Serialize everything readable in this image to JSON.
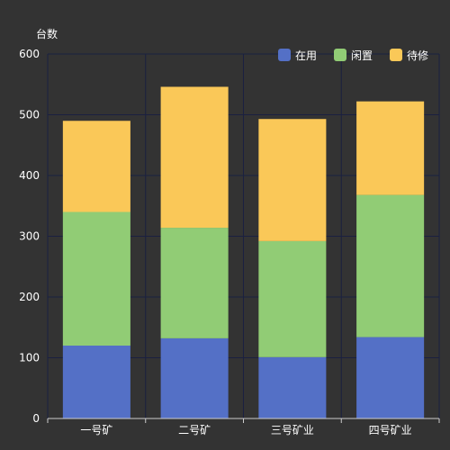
{
  "chart_data": {
    "type": "bar",
    "stacked": true,
    "title": "",
    "xlabel": "",
    "ylabel": "台数",
    "ylim": [
      0,
      600
    ],
    "yticks": [
      0,
      100,
      200,
      300,
      400,
      500,
      600
    ],
    "grid": true,
    "legend_position": "top-right",
    "categories": [
      "一号矿",
      "二号矿",
      "三号矿业",
      "四号矿业"
    ],
    "series": [
      {
        "name": "在用",
        "color": "#5470c6",
        "values": [
          120,
          132,
          101,
          134
        ]
      },
      {
        "name": "闲置",
        "color": "#91cc75",
        "values": [
          220,
          182,
          191,
          234
        ]
      },
      {
        "name": "待修",
        "color": "#fac858",
        "values": [
          150,
          232,
          201,
          154
        ]
      }
    ],
    "colors": {
      "background": "#333333",
      "text": "#ffffff",
      "grid": "#1a2040",
      "axis": "#cccccc"
    }
  }
}
